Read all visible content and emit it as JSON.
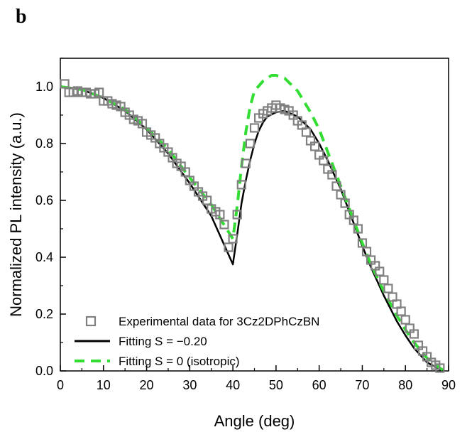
{
  "panel_label": "b",
  "chart_data": {
    "type": "line",
    "title": "",
    "xlabel": "Angle (deg)",
    "ylabel": "Normalized PL intensity (a.u.)",
    "xlim": [
      0,
      90
    ],
    "ylim": [
      0,
      1.1
    ],
    "xticks": [
      "0",
      "10",
      "20",
      "30",
      "40",
      "50",
      "60",
      "70",
      "80",
      "90"
    ],
    "yticks": [
      "0.0",
      "0.2",
      "0.4",
      "0.6",
      "0.8",
      "1.0"
    ],
    "grid": false,
    "legend_position": "bottom-left",
    "series": [
      {
        "name": "Experimental data for 3Cz2DPhCzBN",
        "kind": "scatter",
        "marker": "open-square",
        "color": "#808080",
        "points": [
          [
            1,
            1.01
          ],
          [
            2,
            0.98
          ],
          [
            3,
            0.98
          ],
          [
            4,
            0.985
          ],
          [
            5,
            0.98
          ],
          [
            6,
            0.98
          ],
          [
            7,
            0.975
          ],
          [
            8,
            0.975
          ],
          [
            9,
            0.98
          ],
          [
            10,
            0.95
          ],
          [
            11,
            0.95
          ],
          [
            12,
            0.94
          ],
          [
            13,
            0.935
          ],
          [
            14,
            0.93
          ],
          [
            15,
            0.91
          ],
          [
            16,
            0.9
          ],
          [
            17,
            0.885
          ],
          [
            18,
            0.88
          ],
          [
            19,
            0.87
          ],
          [
            20,
            0.84
          ],
          [
            21,
            0.83
          ],
          [
            22,
            0.82
          ],
          [
            23,
            0.8
          ],
          [
            24,
            0.785
          ],
          [
            25,
            0.77
          ],
          [
            26,
            0.75
          ],
          [
            27,
            0.73
          ],
          [
            28,
            0.72
          ],
          [
            29,
            0.7
          ],
          [
            30,
            0.67
          ],
          [
            31,
            0.65
          ],
          [
            32,
            0.63
          ],
          [
            33,
            0.615
          ],
          [
            34,
            0.6
          ],
          [
            35,
            0.57
          ],
          [
            36,
            0.56
          ],
          [
            37,
            0.55
          ],
          [
            38,
            0.515
          ],
          [
            39,
            0.435
          ],
          [
            40,
            0.465
          ],
          [
            41,
            0.55
          ],
          [
            42,
            0.655
          ],
          [
            43,
            0.73
          ],
          [
            44,
            0.8
          ],
          [
            45,
            0.855
          ],
          [
            46,
            0.89
          ],
          [
            47,
            0.905
          ],
          [
            48,
            0.915
          ],
          [
            49,
            0.925
          ],
          [
            50,
            0.935
          ],
          [
            51,
            0.925
          ],
          [
            52,
            0.92
          ],
          [
            53,
            0.915
          ],
          [
            54,
            0.9
          ],
          [
            55,
            0.88
          ],
          [
            56,
            0.865
          ],
          [
            57,
            0.84
          ],
          [
            58,
            0.81
          ],
          [
            59,
            0.79
          ],
          [
            60,
            0.76
          ],
          [
            61,
            0.74
          ],
          [
            62,
            0.71
          ],
          [
            63,
            0.69
          ],
          [
            64,
            0.65
          ],
          [
            65,
            0.62
          ],
          [
            66,
            0.59
          ],
          [
            67,
            0.55
          ],
          [
            68,
            0.53
          ],
          [
            69,
            0.5
          ],
          [
            70,
            0.45
          ],
          [
            71,
            0.42
          ],
          [
            72,
            0.39
          ],
          [
            73,
            0.37
          ],
          [
            74,
            0.35
          ],
          [
            75,
            0.32
          ],
          [
            76,
            0.29
          ],
          [
            77,
            0.26
          ],
          [
            78,
            0.235
          ],
          [
            79,
            0.21
          ],
          [
            80,
            0.18
          ],
          [
            81,
            0.15
          ],
          [
            82,
            0.13
          ],
          [
            83,
            0.09
          ],
          [
            84,
            0.07
          ],
          [
            85,
            0.05
          ],
          [
            86,
            0.03
          ],
          [
            87,
            0.02
          ],
          [
            88,
            0.01
          ]
        ]
      },
      {
        "name": "Fitting S = −0.20",
        "kind": "line",
        "color": "#000000",
        "dash": "solid",
        "points": [
          [
            0,
            1.0
          ],
          [
            5,
            0.99
          ],
          [
            10,
            0.96
          ],
          [
            15,
            0.915
          ],
          [
            20,
            0.85
          ],
          [
            25,
            0.765
          ],
          [
            30,
            0.66
          ],
          [
            35,
            0.545
          ],
          [
            40,
            0.375
          ],
          [
            41,
            0.48
          ],
          [
            42,
            0.59
          ],
          [
            43,
            0.67
          ],
          [
            44,
            0.74
          ],
          [
            45,
            0.8
          ],
          [
            46,
            0.845
          ],
          [
            47,
            0.875
          ],
          [
            48,
            0.895
          ],
          [
            50,
            0.91
          ],
          [
            52,
            0.915
          ],
          [
            55,
            0.895
          ],
          [
            58,
            0.85
          ],
          [
            60,
            0.8
          ],
          [
            62,
            0.74
          ],
          [
            65,
            0.64
          ],
          [
            68,
            0.52
          ],
          [
            70,
            0.44
          ],
          [
            72,
            0.365
          ],
          [
            75,
            0.265
          ],
          [
            78,
            0.175
          ],
          [
            80,
            0.125
          ],
          [
            82,
            0.08
          ],
          [
            85,
            0.03
          ],
          [
            88,
            0.005
          ],
          [
            89,
            0.0
          ]
        ]
      },
      {
        "name": "Fitting S = 0 (isotropic)",
        "kind": "line",
        "color": "#33dd33",
        "dash": "dashed",
        "points": [
          [
            0,
            1.0
          ],
          [
            5,
            0.99
          ],
          [
            10,
            0.96
          ],
          [
            15,
            0.92
          ],
          [
            20,
            0.855
          ],
          [
            25,
            0.78
          ],
          [
            30,
            0.68
          ],
          [
            35,
            0.585
          ],
          [
            40,
            0.465
          ],
          [
            41,
            0.58
          ],
          [
            42,
            0.72
          ],
          [
            43,
            0.84
          ],
          [
            44,
            0.93
          ],
          [
            45,
            0.985
          ],
          [
            47,
            1.02
          ],
          [
            49,
            1.04
          ],
          [
            50,
            1.04
          ],
          [
            52,
            1.03
          ],
          [
            55,
            0.985
          ],
          [
            58,
            0.91
          ],
          [
            60,
            0.85
          ],
          [
            62,
            0.77
          ],
          [
            65,
            0.65
          ],
          [
            68,
            0.53
          ],
          [
            70,
            0.45
          ],
          [
            72,
            0.375
          ],
          [
            75,
            0.28
          ],
          [
            78,
            0.195
          ],
          [
            80,
            0.145
          ],
          [
            82,
            0.1
          ],
          [
            85,
            0.045
          ],
          [
            88,
            0.01
          ],
          [
            89,
            0.0
          ]
        ]
      }
    ]
  }
}
